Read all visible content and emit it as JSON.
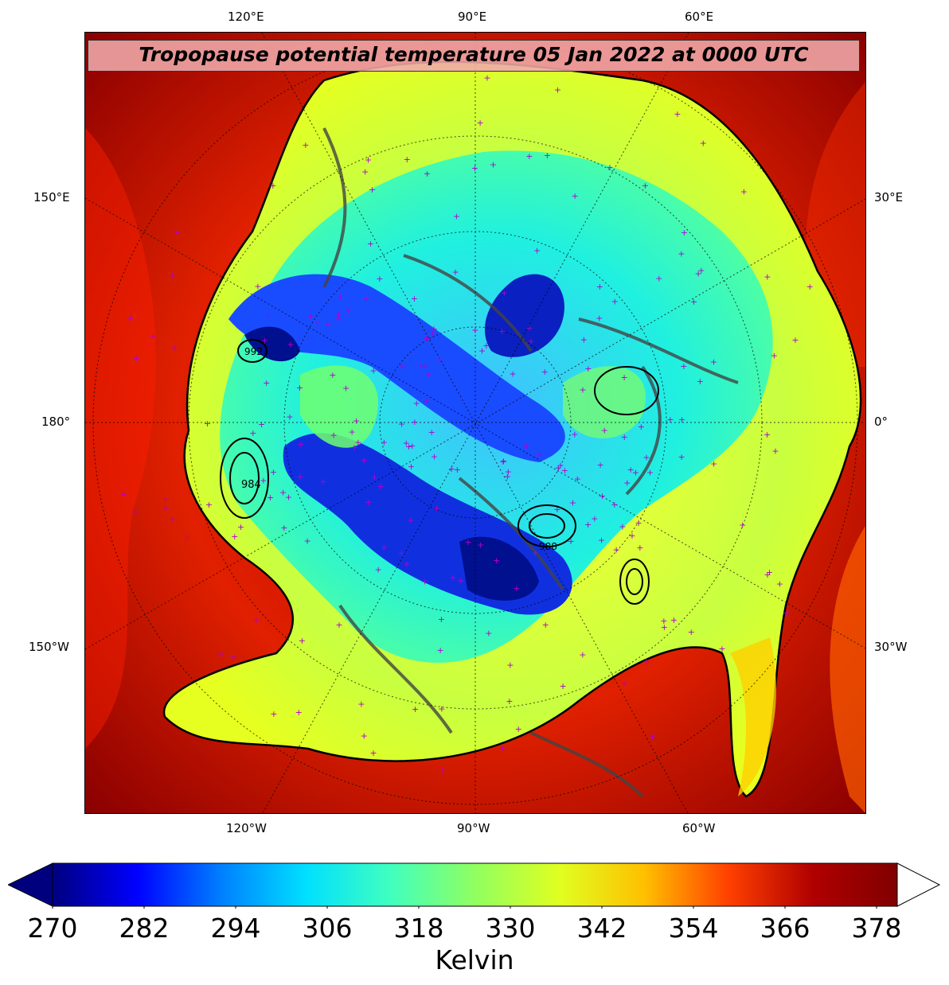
{
  "title": "Tropopause potential temperature 05 Jan 2022 at 0000 UTC",
  "longitude_labels": {
    "top": [
      "120°E",
      "90°E",
      "60°E"
    ],
    "left": [
      "150°E",
      "180°",
      "150°W"
    ],
    "right": [
      "30°E",
      "0°",
      "30°W"
    ],
    "bottom": [
      "120°W",
      "90°W",
      "60°W"
    ]
  },
  "colorbar": {
    "label": "Kelvin",
    "ticks": [
      "270",
      "282",
      "294",
      "306",
      "318",
      "330",
      "342",
      "354",
      "366",
      "378"
    ],
    "colors": [
      "#00007f",
      "#0000ff",
      "#0080ff",
      "#00e0ff",
      "#40ffbf",
      "#90ff60",
      "#e0ff20",
      "#ffc000",
      "#ff4000",
      "#b00000",
      "#800000"
    ]
  },
  "pressure_labels": [
    "992",
    "984",
    "988"
  ]
}
